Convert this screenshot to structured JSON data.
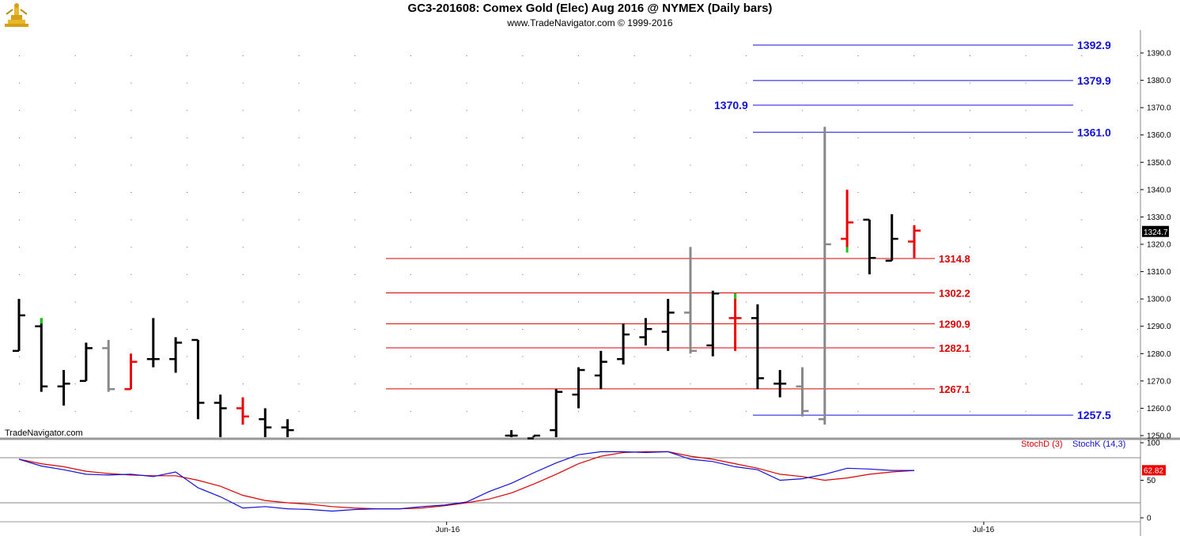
{
  "header": {
    "title": "GC3-201608:  Comex Gold (Elec) Aug 2016 @ NYMEX  (Daily bars)",
    "subtitle": "www.TradeNavigator.com © 1999-2016",
    "watermark": "TradeNavigator.com"
  },
  "chart_data": [
    {
      "type": "ohlc",
      "title": "GC3-201608:  Comex Gold (Elec) Aug 2016 @ NYMEX  (Daily bars)",
      "ylim": [
        1248,
        1398
      ],
      "yticks": [
        1250,
        1260,
        1270,
        1280,
        1290,
        1300,
        1310,
        1320,
        1330,
        1340,
        1350,
        1360,
        1370,
        1380,
        1390
      ],
      "x_labels": [
        {
          "label": "Jun-16",
          "index": 19
        },
        {
          "label": "Jul-16",
          "index": 43
        }
      ],
      "last_price": "1324.7",
      "last_price_color": "#000000",
      "colors": {
        "up": "#000000",
        "down_red": "#ee0000",
        "gray": "#888888",
        "green": "#11cc11",
        "blue_level": "#1010dd",
        "red_level": "#dd0000"
      },
      "bars": [
        {
          "i": 0,
          "o": 1281,
          "h": 1300,
          "l": 1281,
          "c": 1294,
          "color": "black"
        },
        {
          "i": 1,
          "o": 1290,
          "h": 1293,
          "l": 1266,
          "c": 1268,
          "color": "black",
          "tip": "green"
        },
        {
          "i": 2,
          "o": 1268,
          "h": 1274,
          "l": 1261,
          "c": 1269,
          "color": "black"
        },
        {
          "i": 3,
          "o": 1270,
          "h": 1284,
          "l": 1270,
          "c": 1282,
          "color": "black"
        },
        {
          "i": 4,
          "o": 1282,
          "h": 1285,
          "l": 1266,
          "c": 1267,
          "color": "gray"
        },
        {
          "i": 5,
          "o": 1267,
          "h": 1280,
          "l": 1267,
          "c": 1277,
          "color": "red"
        },
        {
          "i": 6,
          "o": 1278,
          "h": 1293,
          "l": 1275,
          "c": 1278,
          "color": "black"
        },
        {
          "i": 7,
          "o": 1278,
          "h": 1286,
          "l": 1273,
          "c": 1284,
          "color": "black"
        },
        {
          "i": 8,
          "o": 1285,
          "h": 1285,
          "l": 1256,
          "c": 1262,
          "color": "black"
        },
        {
          "i": 9,
          "o": 1262,
          "h": 1265,
          "l": 1249,
          "c": 1260,
          "color": "black"
        },
        {
          "i": 10,
          "o": 1260,
          "h": 1264,
          "l": 1254,
          "c": 1257,
          "color": "red"
        },
        {
          "i": 11,
          "o": 1256,
          "h": 1260,
          "l": 1249,
          "c": 1253,
          "color": "black"
        },
        {
          "i": 12,
          "o": 1253,
          "h": 1256,
          "l": 1249,
          "c": 1252,
          "color": "black"
        },
        {
          "i": 22,
          "o": 1250,
          "h": 1252,
          "l": 1249,
          "c": 1250,
          "color": "black"
        },
        {
          "i": 23,
          "o": 1249,
          "h": 1250,
          "l": 1249,
          "c": 1250,
          "color": "black"
        },
        {
          "i": 24,
          "o": 1252,
          "h": 1267,
          "l": 1249,
          "c": 1266,
          "color": "black"
        },
        {
          "i": 25,
          "o": 1265,
          "h": 1275,
          "l": 1260,
          "c": 1274,
          "color": "black"
        },
        {
          "i": 26,
          "o": 1272,
          "h": 1281,
          "l": 1267,
          "c": 1277,
          "color": "black"
        },
        {
          "i": 27,
          "o": 1278,
          "h": 1291,
          "l": 1276,
          "c": 1287,
          "color": "black"
        },
        {
          "i": 28,
          "o": 1286,
          "h": 1293,
          "l": 1283,
          "c": 1289,
          "color": "black"
        },
        {
          "i": 29,
          "o": 1288,
          "h": 1300,
          "l": 1281,
          "c": 1295,
          "color": "black"
        },
        {
          "i": 30,
          "o": 1295,
          "h": 1319,
          "l": 1280,
          "c": 1281,
          "color": "gray"
        },
        {
          "i": 31,
          "o": 1283,
          "h": 1303,
          "l": 1279,
          "c": 1302,
          "color": "black"
        },
        {
          "i": 32,
          "o": 1293,
          "h": 1302,
          "l": 1281,
          "c": 1293,
          "color": "red",
          "tip": "green"
        },
        {
          "i": 33,
          "o": 1293,
          "h": 1298,
          "l": 1267,
          "c": 1271,
          "color": "black"
        },
        {
          "i": 34,
          "o": 1269,
          "h": 1274,
          "l": 1264,
          "c": 1269,
          "color": "black"
        },
        {
          "i": 35,
          "o": 1268,
          "h": 1275,
          "l": 1257,
          "c": 1259,
          "color": "gray"
        },
        {
          "i": 36,
          "o": 1256,
          "h": 1363,
          "l": 1254,
          "c": 1320,
          "color": "gray"
        },
        {
          "i": 37,
          "o": 1322,
          "h": 1340,
          "l": 1319,
          "c": 1328,
          "color": "red",
          "tip": "green"
        },
        {
          "i": 38,
          "o": 1329,
          "h": 1329,
          "l": 1309,
          "c": 1315,
          "color": "black"
        },
        {
          "i": 39,
          "o": 1314,
          "h": 1331,
          "l": 1314,
          "c": 1322,
          "color": "black"
        },
        {
          "i": 40,
          "o": 1321,
          "h": 1327,
          "l": 1315,
          "c": 1325,
          "color": "red"
        }
      ],
      "levels": [
        {
          "value": 1392.9,
          "label": "1392.9",
          "color": "blue",
          "x0": 33,
          "x1": 47,
          "label_pos": "right"
        },
        {
          "value": 1379.9,
          "label": "1379.9",
          "color": "blue",
          "x0": 33,
          "x1": 47,
          "label_pos": "right"
        },
        {
          "value": 1370.9,
          "label": "1370.9",
          "color": "blue",
          "x0": 33,
          "x1": 47,
          "label_pos": "left"
        },
        {
          "value": 1361.0,
          "label": "1361.0",
          "color": "blue",
          "x0": 33,
          "x1": 47,
          "label_pos": "right"
        },
        {
          "value": 1257.5,
          "label": "1257.5",
          "color": "blue",
          "x0": 33,
          "x1": 47,
          "label_pos": "right"
        },
        {
          "value": 1314.8,
          "label": "1314.8",
          "color": "red",
          "x0": 17,
          "x1": 41,
          "label_pos": "right"
        },
        {
          "value": 1302.2,
          "label": "1302.2",
          "color": "red",
          "x0": 17,
          "x1": 41,
          "label_pos": "right"
        },
        {
          "value": 1290.9,
          "label": "1290.9",
          "color": "red",
          "x0": 17,
          "x1": 41,
          "label_pos": "right"
        },
        {
          "value": 1282.1,
          "label": "1282.1",
          "color": "red",
          "x0": 17,
          "x1": 41,
          "label_pos": "right"
        },
        {
          "value": 1267.1,
          "label": "1267.1",
          "color": "red",
          "x0": 17,
          "x1": 41,
          "label_pos": "right"
        }
      ]
    },
    {
      "type": "line",
      "ylim": [
        0,
        100
      ],
      "yticks": [
        0,
        50,
        100
      ],
      "reference_lines": [
        20,
        80
      ],
      "last_value": "62.82",
      "series": [
        {
          "name": "StochD (3)",
          "color": "#dd0000",
          "x": [
            0,
            1,
            2,
            3,
            4,
            5,
            6,
            7,
            8,
            9,
            10,
            11,
            12,
            13,
            14,
            15,
            16,
            17,
            18,
            19,
            20,
            21,
            22,
            23,
            24,
            25,
            26,
            27,
            28,
            29,
            30,
            31,
            32,
            33,
            34,
            35,
            36,
            37,
            38,
            39,
            40
          ],
          "values": [
            78,
            72,
            68,
            62,
            59,
            57,
            56,
            56,
            50,
            42,
            30,
            23,
            20,
            18,
            15,
            13,
            12,
            12,
            13,
            16,
            20,
            25,
            33,
            45,
            58,
            72,
            82,
            87,
            88,
            88,
            82,
            78,
            72,
            66,
            58,
            55,
            50,
            53,
            58,
            61,
            63
          ]
        },
        {
          "name": "StochK (14,3)",
          "color": "#1010dd",
          "x": [
            0,
            1,
            2,
            3,
            4,
            5,
            6,
            7,
            8,
            9,
            10,
            11,
            12,
            13,
            14,
            15,
            16,
            17,
            18,
            19,
            20,
            21,
            22,
            23,
            24,
            25,
            26,
            27,
            28,
            29,
            30,
            31,
            32,
            33,
            34,
            35,
            36,
            37,
            38,
            39,
            40
          ],
          "values": [
            78,
            69,
            64,
            58,
            57,
            58,
            55,
            61,
            40,
            28,
            13,
            15,
            12,
            11,
            9,
            11,
            12,
            12,
            15,
            17,
            21,
            35,
            46,
            60,
            73,
            84,
            88,
            88,
            87,
            88,
            78,
            75,
            68,
            64,
            50,
            52,
            58,
            66,
            65,
            63,
            63
          ]
        }
      ]
    }
  ]
}
